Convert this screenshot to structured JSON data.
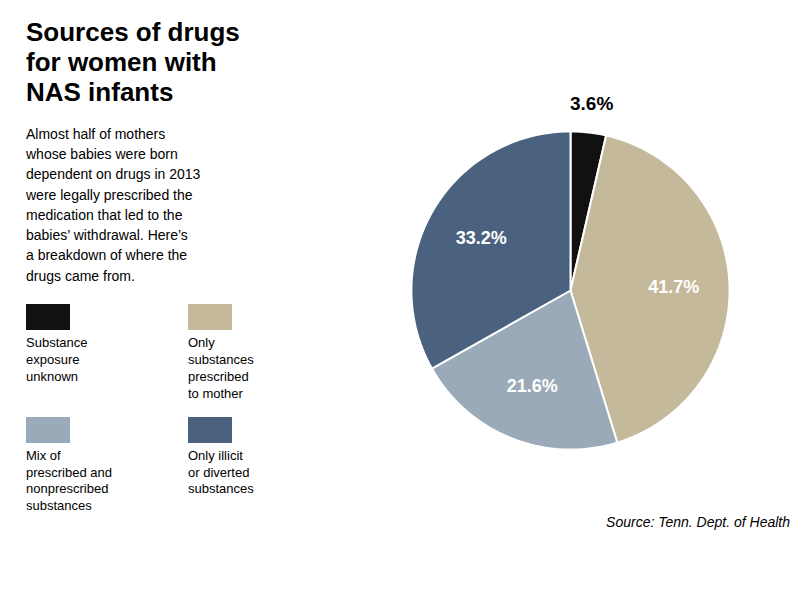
{
  "chart_data": {
    "type": "pie",
    "title": "Sources of drugs\nfor women with\nNAS infants",
    "subtitle": "Almost half of mothers\nwhose babies were born\ndependent on drugs in 2013\nwere legally prescribed the\nmedication that led to the\nbabies’ withdrawal. Here’s\na breakdown of where the\ndrugs came from.",
    "categories": [
      "Substance\nexposure\nunknown",
      "Only\nsubstances\nprescribed\nto mother",
      "Mix of\nprescribed and\nnonprescribed\nsubstances",
      "Only illicit\nor diverted\nsubstances"
    ],
    "values": [
      3.6,
      41.7,
      21.6,
      33.2
    ],
    "value_labels": [
      "3.6%",
      "41.7%",
      "21.6%",
      "33.2%"
    ],
    "colors": [
      "#111111",
      "#C4B99A",
      "#9AAAB8",
      "#4A6280"
    ],
    "data_labels": true,
    "legend": "left",
    "annotations": [
      "Source: Tenn. Dept. of Health"
    ]
  }
}
